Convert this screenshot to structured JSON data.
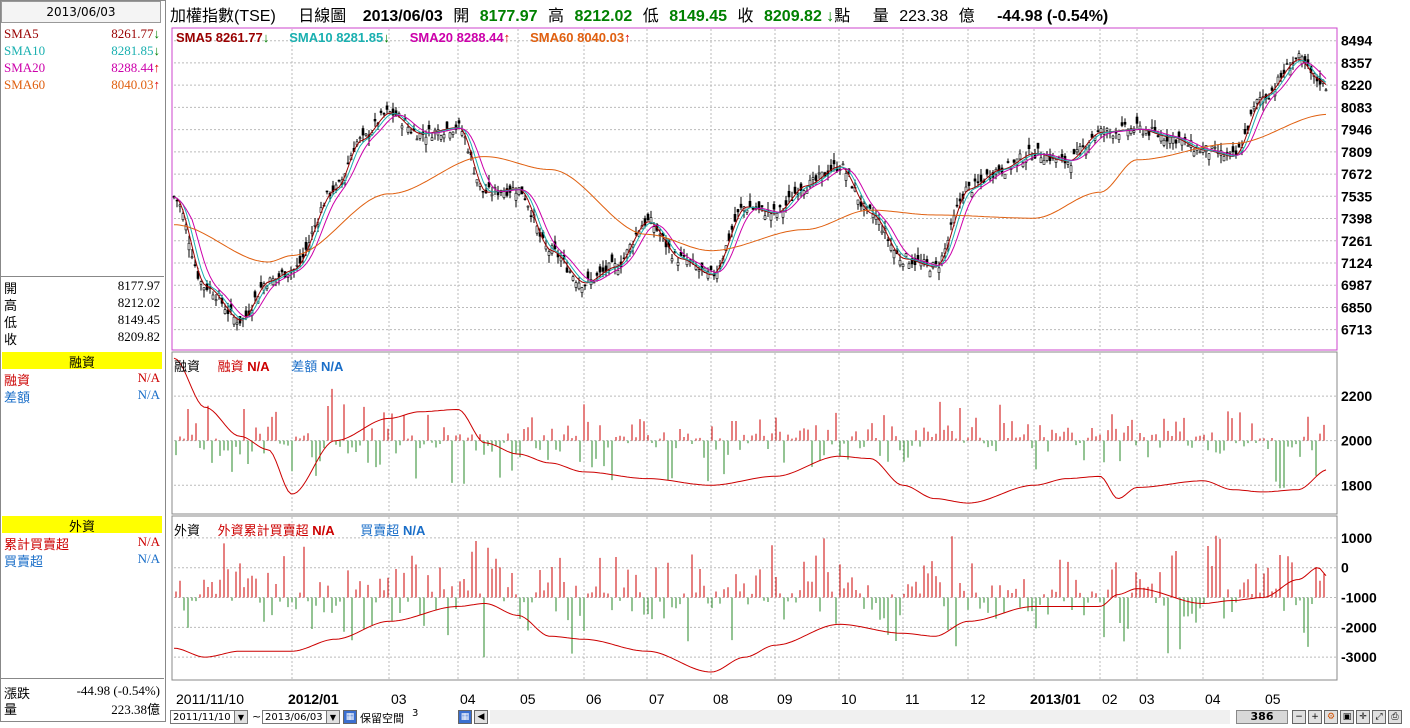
{
  "left_panel": {
    "date": "2013/06/03",
    "sma": [
      {
        "label": "SMA5",
        "value": "8261.77",
        "dir": "down",
        "color": "#990000"
      },
      {
        "label": "SMA10",
        "value": "8281.85",
        "dir": "down",
        "color": "#1ab0b0"
      },
      {
        "label": "SMA20",
        "value": "8288.44",
        "dir": "up",
        "color": "#cc00aa"
      },
      {
        "label": "SMA60",
        "value": "8040.03",
        "dir": "up",
        "color": "#e06010"
      }
    ],
    "ohlc": [
      {
        "label": "開",
        "value": "8177.97"
      },
      {
        "label": "高",
        "value": "8212.02"
      },
      {
        "label": "低",
        "value": "8149.45"
      },
      {
        "label": "收",
        "value": "8209.82"
      }
    ],
    "margin_title": "融資",
    "margin_rows": [
      {
        "label": "融資",
        "value": "N/A",
        "color": "#cc0000"
      },
      {
        "label": "差額",
        "value": "N/A",
        "color": "#1a6ec8"
      }
    ],
    "foreign_title": "外資",
    "foreign_rows": [
      {
        "label": "累計買賣超",
        "value": "N/A",
        "color": "#cc0000"
      },
      {
        "label": "買賣超",
        "value": "N/A",
        "color": "#1a6ec8"
      }
    ],
    "change_label": "漲跌",
    "change_value": "-44.98 (-0.54%)",
    "volume_label": "量",
    "volume_value": "223.38億"
  },
  "topbar": {
    "name": "加權指數(TSE)",
    "period": "日線圖",
    "date": "2013/06/03",
    "open_label": "開",
    "open": "8177.97",
    "high_label": "高",
    "high": "8212.02",
    "low_label": "低",
    "low": "8149.45",
    "close_label": "收",
    "close": "8209.82",
    "close_arrow": "↓",
    "unit_label": "點",
    "volume_label": "量",
    "volume": "223.38",
    "volume_unit": "億",
    "change": "-44.98 (-0.54%)"
  },
  "price_legend": [
    {
      "text": "SMA5 8261.77",
      "arrow": "↓",
      "color": "#990000",
      "arrow_color": "#008000"
    },
    {
      "text": "SMA10 8281.85",
      "arrow": "↓",
      "color": "#1ab0b0",
      "arrow_color": "#008000"
    },
    {
      "text": "SMA20 8288.44",
      "arrow": "↑",
      "color": "#cc00aa",
      "arrow_color": "#dd0000"
    },
    {
      "text": "SMA60 8040.03",
      "arrow": "↑",
      "color": "#e06010",
      "arrow_color": "#dd0000"
    }
  ],
  "margin_legend": {
    "title": "融資",
    "item1": "融資",
    "val1": "N/A",
    "item2": "差額",
    "val2": "N/A"
  },
  "foreign_legend": {
    "title": "外資",
    "item1": "外資累計買賣超",
    "val1": "N/A",
    "item2": "買賣超",
    "val2": "N/A"
  },
  "bottombar": {
    "start_date": "2011/11/10",
    "tilde": "~",
    "end_date": "2013/06/03",
    "reserve_label": "保留空間",
    "reserve_value": "3",
    "count": "386"
  },
  "chart_data": [
    {
      "type": "candlestick",
      "title": "加權指數(TSE) 日線圖",
      "y_ticks": [
        8494,
        8357,
        8220,
        8083,
        7946,
        7809,
        7672,
        7535,
        7398,
        7261,
        7124,
        6987,
        6850,
        6713
      ],
      "ylim": [
        6600,
        8560
      ],
      "x_ticks": [
        "2011/11/10",
        "2012/01",
        "03",
        "04",
        "05",
        "06",
        "07",
        "08",
        "09",
        "10",
        "11",
        "12",
        "2013/01",
        "02",
        "03",
        "04",
        "05"
      ],
      "anchors": [
        {
          "x": "2011/11/10",
          "close": 7530
        },
        {
          "x": "2011/11 mid",
          "close": 6980
        },
        {
          "x": "2011/12",
          "close": 6770
        },
        {
          "x": "2011/12 end",
          "close": 7010
        },
        {
          "x": "2012/01",
          "close": 7080
        },
        {
          "x": "2012/02",
          "close": 7580
        },
        {
          "x": "2012/02 mid",
          "close": 7880
        },
        {
          "x": "2012/03",
          "close": 8050
        },
        {
          "x": "2012/03 end",
          "close": 7920
        },
        {
          "x": "2012/04",
          "close": 7960
        },
        {
          "x": "2012/04 mid",
          "close": 7560
        },
        {
          "x": "2012/05",
          "close": 7580
        },
        {
          "x": "2012/05 mid",
          "close": 7200
        },
        {
          "x": "2012/06",
          "close": 7000
        },
        {
          "x": "2012/06 mid",
          "close": 7100
        },
        {
          "x": "2012/07",
          "close": 7380
        },
        {
          "x": "2012/07 mid",
          "close": 7150
        },
        {
          "x": "2012/08",
          "close": 7050
        },
        {
          "x": "2012/08 mid",
          "close": 7470
        },
        {
          "x": "2012/09",
          "close": 7430
        },
        {
          "x": "2012/09 mid",
          "close": 7600
        },
        {
          "x": "2012/10",
          "close": 7720
        },
        {
          "x": "2012/10 mid",
          "close": 7430
        },
        {
          "x": "2012/11",
          "close": 7150
        },
        {
          "x": "2012/11 mid",
          "close": 7100
        },
        {
          "x": "2012/12",
          "close": 7580
        },
        {
          "x": "2012/12 mid",
          "close": 7700
        },
        {
          "x": "2013/01",
          "close": 7800
        },
        {
          "x": "2013/01 mid",
          "close": 7750
        },
        {
          "x": "2013/02",
          "close": 7930
        },
        {
          "x": "2013/03",
          "close": 7950
        },
        {
          "x": "2013/03 mid",
          "close": 7900
        },
        {
          "x": "2013/04",
          "close": 7820
        },
        {
          "x": "2013/04 mid",
          "close": 7780
        },
        {
          "x": "2013/05",
          "close": 8150
        },
        {
          "x": "2013/05 mid",
          "close": 8380
        },
        {
          "x": "2013/05 end",
          "close": 8254
        },
        {
          "x": "2013/06/03",
          "close": 8210
        }
      ],
      "sma60_anchors": [
        {
          "x": "2011/11/10",
          "value": 7360
        },
        {
          "x": "2011/12 end",
          "value": 7130
        },
        {
          "x": "2012/01",
          "value": 7170
        },
        {
          "x": "2012/03",
          "value": 7550
        },
        {
          "x": "2012/04 mid",
          "value": 7780
        },
        {
          "x": "2012/05 mid",
          "value": 7700
        },
        {
          "x": "2012/07",
          "value": 7300
        },
        {
          "x": "2012/08",
          "value": 7200
        },
        {
          "x": "2012/09 mid",
          "value": 7330
        },
        {
          "x": "2012/10 mid",
          "value": 7450
        },
        {
          "x": "2012/11 mid",
          "value": 7420
        },
        {
          "x": "2013/01",
          "value": 7400
        },
        {
          "x": "2013/02",
          "value": 7560
        },
        {
          "x": "2013/03",
          "value": 7760
        },
        {
          "x": "2013/04 mid",
          "value": 7860
        },
        {
          "x": "2013/06/03",
          "value": 8040
        }
      ]
    },
    {
      "type": "bar+line",
      "title": "融資",
      "y_ticks": [
        2200,
        2000,
        1800
      ],
      "ylim": [
        1680,
        2380
      ],
      "line_anchors": [
        {
          "x": "2011/11/10",
          "value": 2370
        },
        {
          "x": "2011/11 mid",
          "value": 2150
        },
        {
          "x": "2011/12",
          "value": 2020
        },
        {
          "x": "2011/12 end",
          "value": 1960
        },
        {
          "x": "2012/01",
          "value": 1760
        },
        {
          "x": "2012/02",
          "value": 2000
        },
        {
          "x": "2012/03",
          "value": 2100
        },
        {
          "x": "2012/03 end",
          "value": 2130
        },
        {
          "x": "2012/04",
          "value": 2140
        },
        {
          "x": "2012/04 mid",
          "value": 1990
        },
        {
          "x": "2012/05",
          "value": 1940
        },
        {
          "x": "2012/05 mid",
          "value": 1900
        },
        {
          "x": "2012/06",
          "value": 1860
        },
        {
          "x": "2012/07",
          "value": 1830
        },
        {
          "x": "2012/08",
          "value": 1800
        },
        {
          "x": "2012/09",
          "value": 1840
        },
        {
          "x": "2012/10",
          "value": 1930
        },
        {
          "x": "2012/10 mid",
          "value": 1920
        },
        {
          "x": "2012/11",
          "value": 1800
        },
        {
          "x": "2012/11 mid",
          "value": 1740
        },
        {
          "x": "2012/12",
          "value": 1720
        },
        {
          "x": "2013/01",
          "value": 1800
        },
        {
          "x": "2013/01 mid",
          "value": 1830
        },
        {
          "x": "2013/02",
          "value": 1840
        },
        {
          "x": "2013/02 end",
          "value": 1740
        },
        {
          "x": "2013/03",
          "value": 1790
        },
        {
          "x": "2013/04",
          "value": 1820
        },
        {
          "x": "2013/04 mid",
          "value": 1780
        },
        {
          "x": "2013/05",
          "value": 1770
        },
        {
          "x": "2013/05 mid",
          "value": 1780
        },
        {
          "x": "2013/06/03",
          "value": 1870
        }
      ]
    },
    {
      "type": "bar+line",
      "title": "外資",
      "y_ticks": [
        1000,
        0,
        -1000,
        -2000,
        -3000
      ],
      "ylim": [
        -3700,
        1600
      ],
      "line_anchors": [
        {
          "x": "2011/11/10",
          "value": -2700
        },
        {
          "x": "2011/11 mid",
          "value": -3000
        },
        {
          "x": "2011/12",
          "value": -2800
        },
        {
          "x": "2012/01",
          "value": -2800
        },
        {
          "x": "2012/02",
          "value": -2400
        },
        {
          "x": "2012/03",
          "value": -1800
        },
        {
          "x": "2012/04",
          "value": -1300
        },
        {
          "x": "2012/04 mid",
          "value": -1200
        },
        {
          "x": "2012/05",
          "value": -1600
        },
        {
          "x": "2012/05 mid",
          "value": -2300
        },
        {
          "x": "2012/06",
          "value": -2400
        },
        {
          "x": "2012/07",
          "value": -2800
        },
        {
          "x": "2012/08",
          "value": -3500
        },
        {
          "x": "2012/08 mid",
          "value": -3000
        },
        {
          "x": "2012/09",
          "value": -2600
        },
        {
          "x": "2012/10",
          "value": -1900
        },
        {
          "x": "2012/11",
          "value": -2200
        },
        {
          "x": "2012/11 mid",
          "value": -2300
        },
        {
          "x": "2012/12",
          "value": -1800
        },
        {
          "x": "2013/01",
          "value": -1300
        },
        {
          "x": "2013/02",
          "value": -1300
        },
        {
          "x": "2013/02 end",
          "value": -900
        },
        {
          "x": "2013/03",
          "value": -700
        },
        {
          "x": "2013/04",
          "value": -1200
        },
        {
          "x": "2013/04 mid",
          "value": -1100
        },
        {
          "x": "2013/05",
          "value": -1000
        },
        {
          "x": "2013/05 mid",
          "value": -400
        },
        {
          "x": "2013/05 end",
          "value": 0
        },
        {
          "x": "2013/06/03",
          "value": -300
        }
      ]
    }
  ]
}
